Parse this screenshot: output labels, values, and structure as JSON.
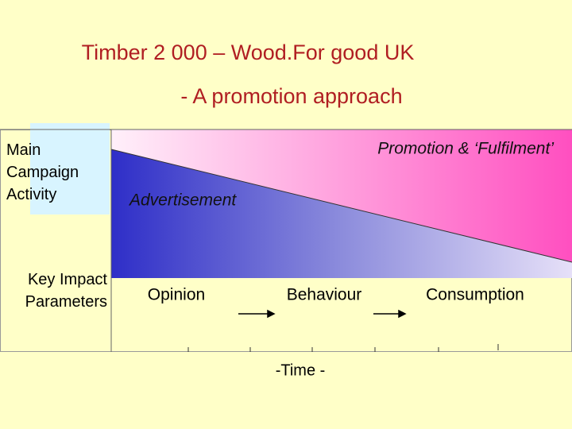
{
  "header": {
    "title": "Timber 2 000 – Wood.For good UK",
    "subtitle": "- A  promotion approach"
  },
  "rows": [
    {
      "label": "Main Campaign Activity"
    },
    {
      "label": "Key Impact Parameters"
    }
  ],
  "regions": {
    "promotion": "Promotion & ‘Fulfilment’",
    "advertisement": "Advertisement"
  },
  "stages": [
    "Opinion",
    "Behaviour",
    "Consumption"
  ],
  "axis_label": "-Time -"
}
